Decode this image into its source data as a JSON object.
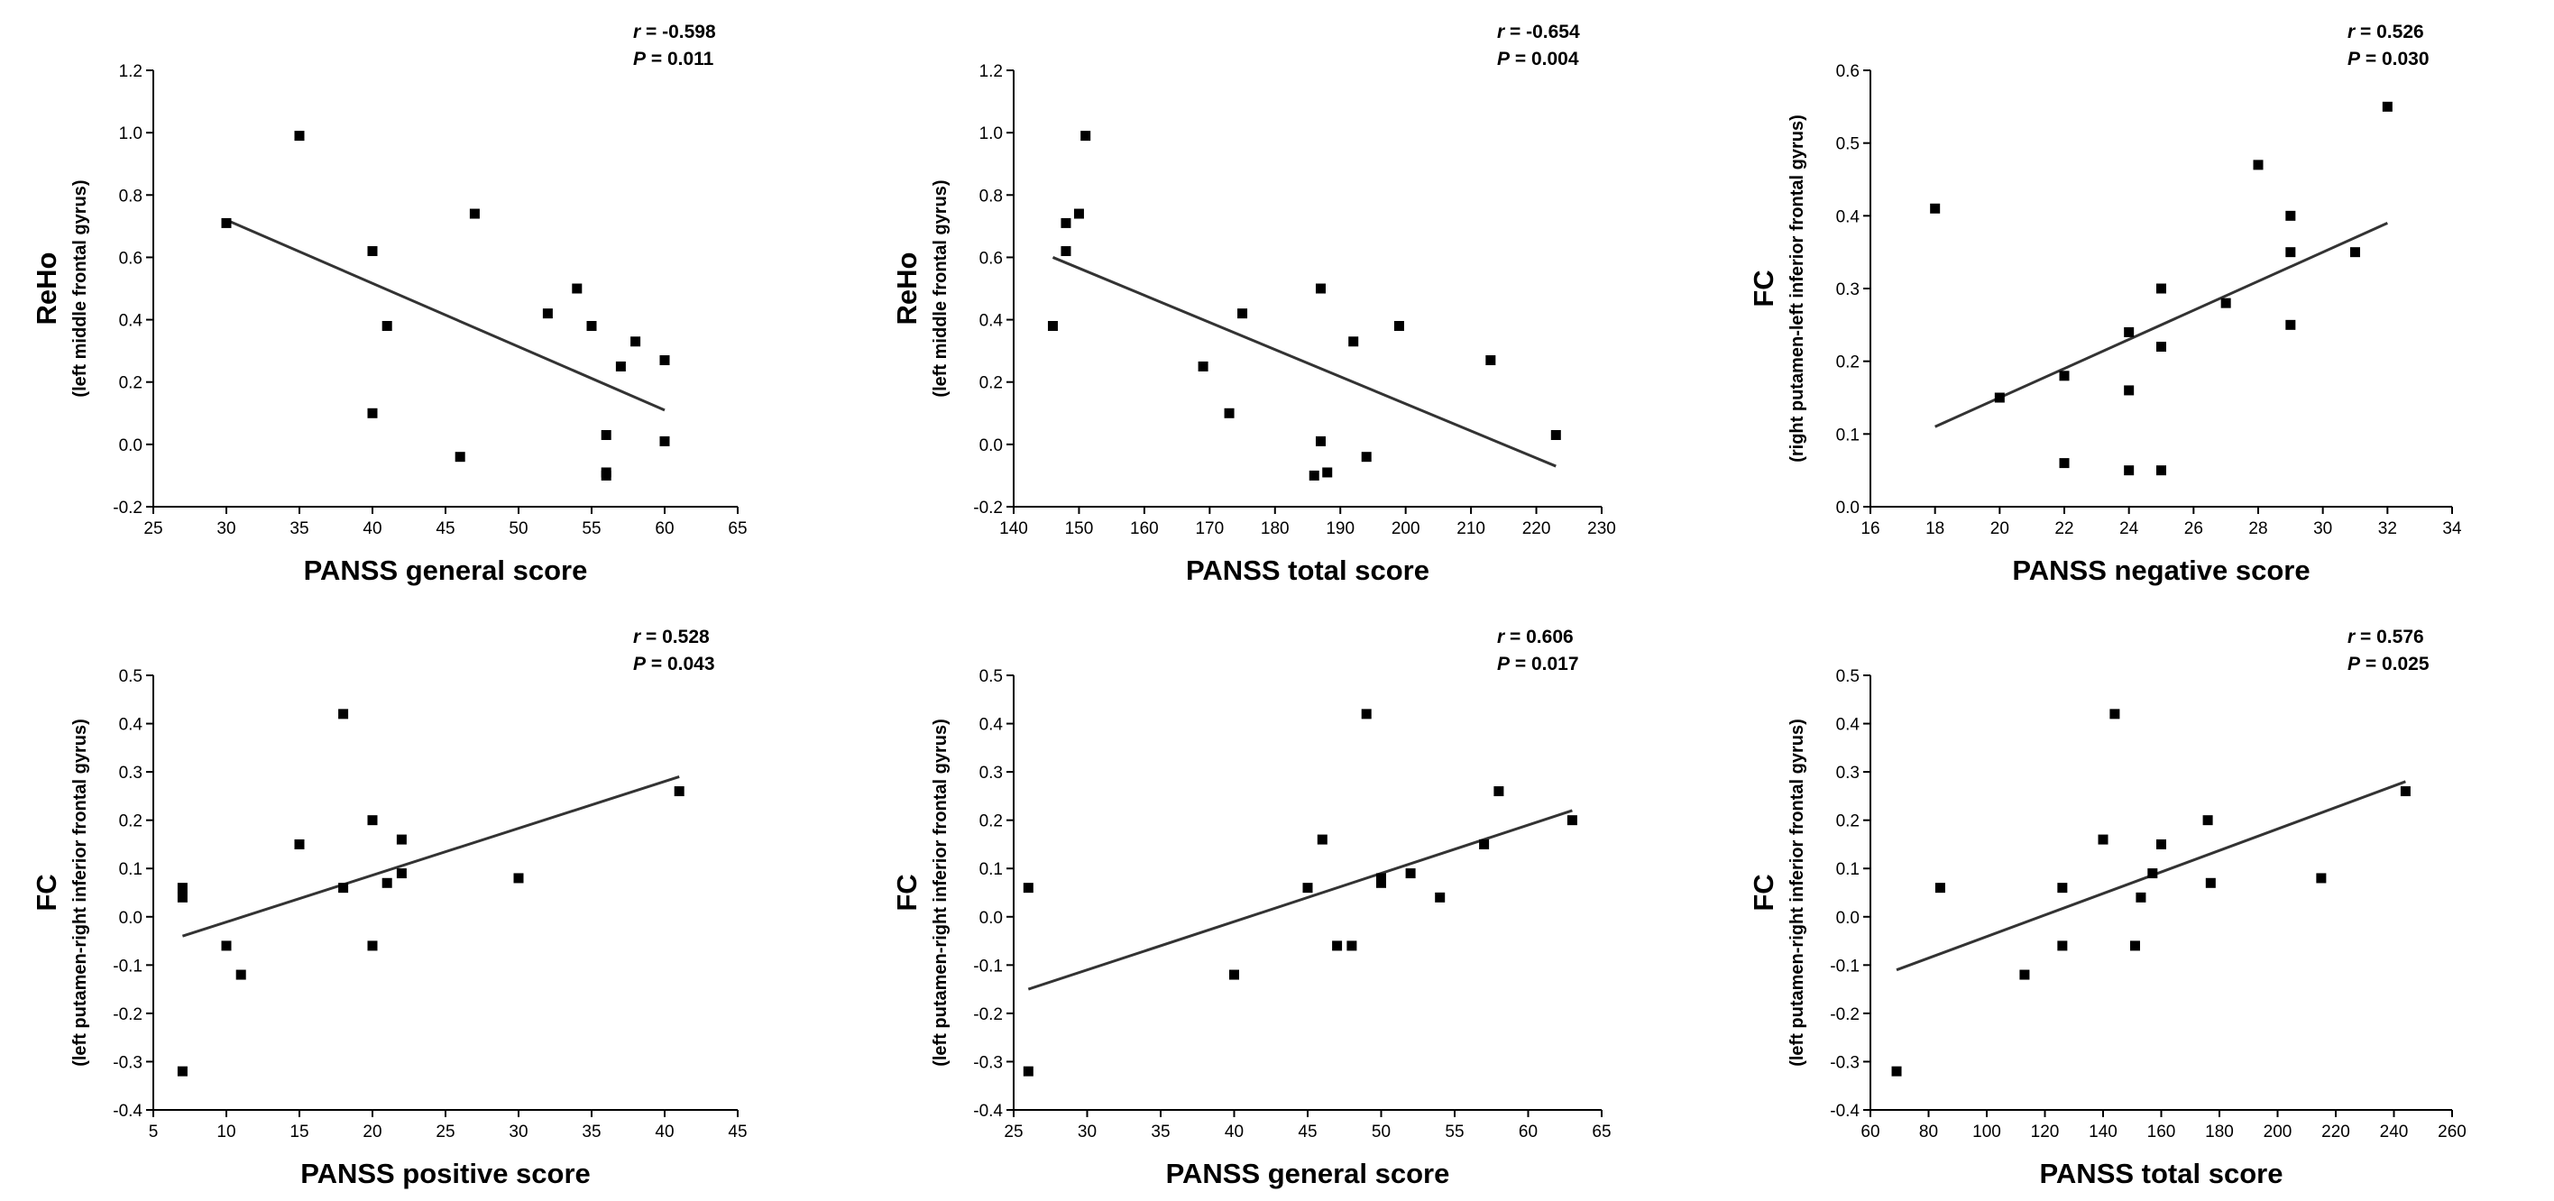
{
  "chart_data": [
    {
      "type": "scatter",
      "ylabel": "ReHo",
      "ylabel_sub": "(left middle frontal gyrus)",
      "xlabel": "PANSS general score",
      "xlim": [
        25,
        65
      ],
      "xticks": [
        25,
        30,
        35,
        40,
        45,
        50,
        55,
        60,
        65
      ],
      "xtick_labels": [
        "25",
        "30",
        "35",
        "40",
        "45",
        "50",
        "55",
        "60",
        "65"
      ],
      "ylim": [
        -0.2,
        1.2
      ],
      "yticks": [
        -0.2,
        0.0,
        0.2,
        0.4,
        0.6,
        0.8,
        1.0,
        1.2
      ],
      "ytick_labels": [
        "-0.2",
        "0.0",
        "0.2",
        "0.4",
        "0.6",
        "0.8",
        "1.0",
        "1.2"
      ],
      "stat_r_label": "r",
      "stat_r_value": " = -0.598",
      "stat_p_label": "P",
      "stat_p_value": " = 0.011",
      "fit": {
        "x": [
          30,
          60
        ],
        "y": [
          0.72,
          0.11
        ]
      },
      "points": {
        "x": [
          30,
          35,
          40,
          40,
          41,
          46,
          47,
          52,
          54,
          55,
          56,
          56,
          56,
          57,
          58,
          60,
          60
        ],
        "y": [
          0.71,
          0.99,
          0.62,
          0.1,
          0.38,
          -0.04,
          0.74,
          0.42,
          0.5,
          0.38,
          0.03,
          -0.09,
          -0.1,
          0.25,
          0.33,
          0.27,
          0.01
        ]
      }
    },
    {
      "type": "scatter",
      "ylabel": "ReHo",
      "ylabel_sub": "(left middle frontal gyrus)",
      "xlabel": "PANSS total score",
      "xlim": [
        140,
        230
      ],
      "xticks": [
        140,
        150,
        160,
        170,
        180,
        190,
        200,
        210,
        220,
        230
      ],
      "xtick_labels": [
        "140",
        "150",
        "160",
        "170",
        "180",
        "190",
        "200",
        "210",
        "220",
        "230"
      ],
      "ylim": [
        -0.2,
        1.2
      ],
      "yticks": [
        -0.2,
        0.0,
        0.2,
        0.4,
        0.6,
        0.8,
        1.0,
        1.2
      ],
      "ytick_labels": [
        "-0.2",
        "0.0",
        "0.2",
        "0.4",
        "0.6",
        "0.8",
        "1.0",
        "1.2"
      ],
      "stat_r_label": "r",
      "stat_r_value": " = -0.654",
      "stat_p_label": "P",
      "stat_p_value": " = 0.004",
      "fit": {
        "x": [
          146,
          223
        ],
        "y": [
          0.6,
          -0.07
        ]
      },
      "points": {
        "x": [
          146,
          148,
          148,
          150,
          151,
          169,
          173,
          175,
          186,
          187,
          187,
          188,
          192,
          194,
          199,
          213,
          223
        ],
        "y": [
          0.38,
          0.71,
          0.62,
          0.74,
          0.99,
          0.25,
          0.1,
          0.42,
          -0.1,
          0.5,
          0.01,
          -0.09,
          0.33,
          -0.04,
          0.38,
          0.27,
          0.03
        ]
      }
    },
    {
      "type": "scatter",
      "ylabel": "FC",
      "ylabel_sub": "(right putamen-left inferior frontal gyrus)",
      "xlabel": "PANSS negative score",
      "xlim": [
        16,
        34
      ],
      "xticks": [
        16,
        18,
        20,
        22,
        24,
        26,
        28,
        30,
        32,
        34
      ],
      "xtick_labels": [
        "16",
        "18",
        "20",
        "22",
        "24",
        "26",
        "28",
        "30",
        "32",
        "34"
      ],
      "ylim": [
        0.0,
        0.6
      ],
      "yticks": [
        0.0,
        0.1,
        0.2,
        0.3,
        0.4,
        0.5,
        0.6
      ],
      "ytick_labels": [
        "0.0",
        "0.1",
        "0.2",
        "0.3",
        "0.4",
        "0.5",
        "0.6"
      ],
      "stat_r_label": "r",
      "stat_r_value": " = 0.526",
      "stat_p_label": "P",
      "stat_p_value": " = 0.030",
      "fit": {
        "x": [
          18,
          32
        ],
        "y": [
          0.11,
          0.39
        ]
      },
      "points": {
        "x": [
          18,
          20,
          22,
          22,
          24,
          24,
          24,
          25,
          25,
          25,
          27,
          28,
          29,
          29,
          29,
          31,
          32
        ],
        "y": [
          0.41,
          0.15,
          0.18,
          0.06,
          0.24,
          0.16,
          0.05,
          0.3,
          0.22,
          0.05,
          0.28,
          0.47,
          0.4,
          0.35,
          0.25,
          0.35,
          0.55
        ]
      }
    },
    {
      "type": "scatter",
      "ylabel": "FC",
      "ylabel_sub": "(left putamen-right inferior frontal gyrus)",
      "xlabel": "PANSS positive score",
      "xlim": [
        5,
        45
      ],
      "xticks": [
        5,
        10,
        15,
        20,
        25,
        30,
        35,
        40,
        45
      ],
      "xtick_labels": [
        "5",
        "10",
        "15",
        "20",
        "25",
        "30",
        "35",
        "40",
        "45"
      ],
      "ylim": [
        -0.4,
        0.5
      ],
      "yticks": [
        -0.4,
        -0.3,
        -0.2,
        -0.1,
        0.0,
        0.1,
        0.2,
        0.3,
        0.4,
        0.5
      ],
      "ytick_labels": [
        "-0.4",
        "-0.3",
        "-0.2",
        "-0.1",
        "0.0",
        "0.1",
        "0.2",
        "0.3",
        "0.4",
        "0.5"
      ],
      "stat_r_label": "r",
      "stat_r_value": " = 0.528",
      "stat_p_label": "P",
      "stat_p_value": " = 0.043",
      "fit": {
        "x": [
          7,
          41
        ],
        "y": [
          -0.04,
          0.29
        ]
      },
      "points": {
        "x": [
          7,
          7,
          7,
          10,
          11,
          15,
          18,
          18,
          20,
          20,
          21,
          22,
          22,
          30,
          41
        ],
        "y": [
          0.06,
          0.04,
          -0.32,
          -0.06,
          -0.12,
          0.15,
          0.42,
          0.06,
          0.2,
          -0.06,
          0.07,
          0.16,
          0.09,
          0.08,
          0.26
        ]
      }
    },
    {
      "type": "scatter",
      "ylabel": "FC",
      "ylabel_sub": "(left putamen-right inferior frontal gyrus)",
      "xlabel": "PANSS general score",
      "xlim": [
        25,
        65
      ],
      "xticks": [
        25,
        30,
        35,
        40,
        45,
        50,
        55,
        60,
        65
      ],
      "xtick_labels": [
        "25",
        "30",
        "35",
        "40",
        "45",
        "50",
        "55",
        "60",
        "65"
      ],
      "ylim": [
        -0.4,
        0.5
      ],
      "yticks": [
        -0.4,
        -0.3,
        -0.2,
        -0.1,
        0.0,
        0.1,
        0.2,
        0.3,
        0.4,
        0.5
      ],
      "ytick_labels": [
        "-0.4",
        "-0.3",
        "-0.2",
        "-0.1",
        "0.0",
        "0.1",
        "0.2",
        "0.3",
        "0.4",
        "0.5"
      ],
      "stat_r_label": "r",
      "stat_r_value": " = 0.606",
      "stat_p_label": "P",
      "stat_p_value": " = 0.017",
      "fit": {
        "x": [
          26,
          63
        ],
        "y": [
          -0.15,
          0.22
        ]
      },
      "points": {
        "x": [
          26,
          26,
          40,
          45,
          46,
          47,
          48,
          49,
          50,
          50,
          52,
          54,
          57,
          58,
          63
        ],
        "y": [
          0.06,
          -0.32,
          -0.12,
          0.06,
          0.16,
          -0.06,
          -0.06,
          0.42,
          0.08,
          0.07,
          0.09,
          0.04,
          0.15,
          0.26,
          0.2
        ]
      }
    },
    {
      "type": "scatter",
      "ylabel": "FC",
      "ylabel_sub": "(left putamen-right inferior frontal gyrus)",
      "xlabel": "PANSS total score",
      "xlim": [
        60,
        260
      ],
      "xticks": [
        60,
        80,
        100,
        120,
        140,
        160,
        180,
        200,
        220,
        240,
        260
      ],
      "xtick_labels": [
        "60",
        "80",
        "100",
        "120",
        "140",
        "160",
        "180",
        "200",
        "220",
        "240",
        "260"
      ],
      "ylim": [
        -0.4,
        0.5
      ],
      "yticks": [
        -0.4,
        -0.3,
        -0.2,
        -0.1,
        0.0,
        0.1,
        0.2,
        0.3,
        0.4,
        0.5
      ],
      "ytick_labels": [
        "-0.4",
        "-0.3",
        "-0.2",
        "-0.1",
        "0.0",
        "0.1",
        "0.2",
        "0.3",
        "0.4",
        "0.5"
      ],
      "stat_r_label": "r",
      "stat_r_value": " = 0.576",
      "stat_p_label": "P",
      "stat_p_value": " = 0.025",
      "fit": {
        "x": [
          69,
          244
        ],
        "y": [
          -0.11,
          0.28
        ]
      },
      "points": {
        "x": [
          69,
          84,
          113,
          126,
          126,
          140,
          144,
          151,
          153,
          157,
          160,
          176,
          177,
          215,
          244
        ],
        "y": [
          -0.32,
          0.06,
          -0.12,
          0.06,
          -0.06,
          0.16,
          0.42,
          -0.06,
          0.04,
          0.09,
          0.15,
          0.2,
          0.07,
          0.08,
          0.26
        ]
      }
    }
  ]
}
